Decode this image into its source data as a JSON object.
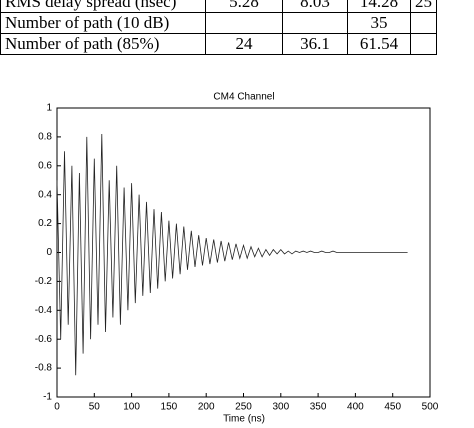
{
  "table": {
    "rows": [
      [
        "RMS delay spread (nsec)",
        "5.28",
        "8.03",
        "14.28",
        "25"
      ],
      [
        "Number of path (10 dB)",
        "",
        "",
        "35",
        ""
      ],
      [
        "Number of path (85%)",
        "24",
        "36.1",
        "61.54",
        ""
      ]
    ]
  },
  "chart_data": {
    "type": "line",
    "title": "CM4 Channel",
    "x_label": "Time (ns)",
    "xlim": [
      0,
      500
    ],
    "xticks": [
      0,
      50,
      100,
      150,
      200,
      250,
      300,
      350,
      400,
      450,
      500
    ],
    "ylim": [
      -1,
      1
    ],
    "yticks": [
      1,
      0.8,
      0.6,
      0.4,
      0.2,
      0,
      -0.2,
      -0.4,
      -0.6,
      -0.8,
      -1
    ],
    "series": [
      {
        "color": "#222222",
        "x": [
          0,
          5,
          10,
          15,
          20,
          25,
          30,
          35,
          40,
          45,
          50,
          55,
          60,
          65,
          70,
          75,
          80,
          85,
          90,
          95,
          100,
          105,
          110,
          115,
          120,
          125,
          130,
          135,
          140,
          145,
          150,
          155,
          160,
          165,
          170,
          175,
          180,
          185,
          190,
          195,
          200,
          205,
          210,
          215,
          220,
          225,
          230,
          235,
          240,
          245,
          250,
          255,
          260,
          265,
          270,
          275,
          280,
          285,
          290,
          295,
          300,
          305,
          310,
          315,
          320,
          325,
          330,
          335,
          340,
          345,
          350,
          355,
          360,
          365,
          370,
          375,
          380,
          385,
          390,
          395,
          400,
          405,
          410,
          415,
          420,
          425,
          430,
          435,
          440,
          445,
          450,
          455,
          460,
          465,
          470
        ],
        "values": [
          0.5,
          -0.6,
          0.7,
          -0.5,
          0.6,
          -0.85,
          0.55,
          -0.7,
          0.8,
          -0.6,
          0.65,
          -0.5,
          0.82,
          -0.55,
          0.5,
          -0.45,
          0.6,
          -0.5,
          0.45,
          -0.4,
          0.48,
          -0.35,
          0.4,
          -0.3,
          0.35,
          -0.28,
          0.3,
          -0.25,
          0.28,
          -0.2,
          0.22,
          -0.18,
          0.2,
          -0.15,
          0.18,
          -0.12,
          0.15,
          -0.1,
          0.12,
          -0.09,
          0.1,
          -0.08,
          0.09,
          -0.07,
          0.08,
          -0.06,
          0.07,
          -0.05,
          0.06,
          -0.04,
          0.05,
          -0.04,
          0.04,
          -0.03,
          0.03,
          -0.03,
          0.02,
          -0.02,
          0.02,
          -0.01,
          0.02,
          -0.01,
          0.01,
          -0.01,
          0.01,
          0,
          0.01,
          0,
          0.01,
          0,
          0,
          0.01,
          0,
          0,
          0.01,
          0,
          0,
          0,
          0,
          0,
          0,
          0,
          0,
          0,
          0,
          0,
          0,
          0,
          0,
          0,
          0,
          0,
          0,
          0,
          0
        ]
      }
    ]
  }
}
